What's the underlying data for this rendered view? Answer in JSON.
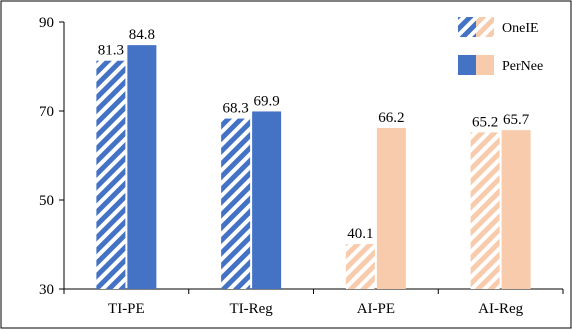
{
  "chart_data": {
    "type": "bar",
    "categories": [
      "TI-PE",
      "TI-Reg",
      "AI-PE",
      "AI-Reg"
    ],
    "series": [
      {
        "name": "OneIE",
        "values": [
          81.3,
          68.3,
          40.1,
          65.2
        ],
        "labels": [
          "81.3",
          "68.3",
          "40.1",
          "65.2"
        ],
        "style": "hatched"
      },
      {
        "name": "PerNee",
        "values": [
          84.8,
          69.9,
          66.2,
          65.7
        ],
        "labels": [
          "84.8",
          "69.9",
          "66.2",
          "65.7"
        ],
        "style": "solid"
      }
    ],
    "ylim": [
      30,
      90
    ],
    "yticks": [
      30,
      50,
      70,
      90
    ],
    "ytick_labels": [
      "30",
      "50",
      "70",
      "90"
    ],
    "grid": false,
    "legend_position": "top-right",
    "colors": {
      "task_TI": "#4472c4",
      "task_AI": "#f8cbad",
      "hatch_background": "#ffffff",
      "axis": "#000000",
      "frame": "#000000"
    }
  }
}
